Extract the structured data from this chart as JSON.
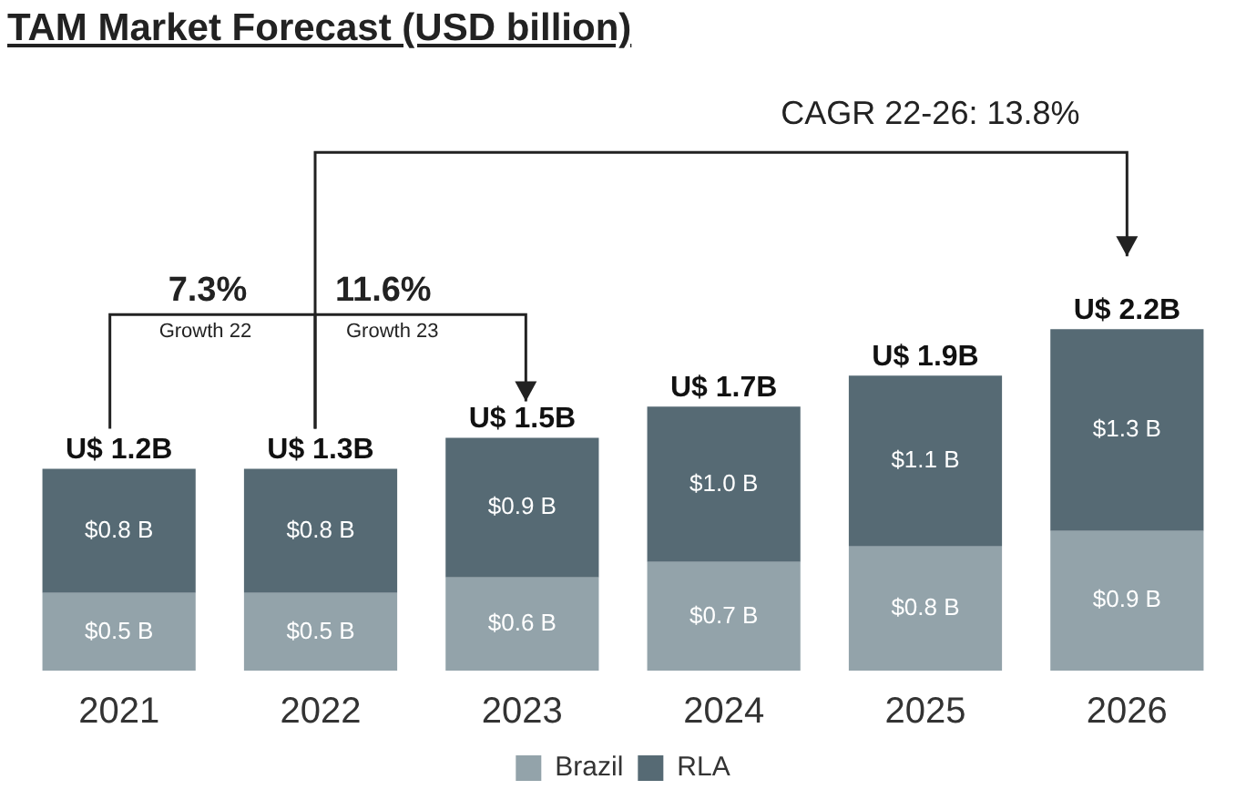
{
  "chart_data": {
    "type": "bar",
    "title": "TAM Market Forecast (USD billion)",
    "stacked": true,
    "legend": "bottom",
    "categories": [
      "2021",
      "2022",
      "2023",
      "2024",
      "2025",
      "2026"
    ],
    "series": [
      {
        "name": "Brazil",
        "color": "#93a3aa",
        "values": [
          0.5,
          0.5,
          0.6,
          0.7,
          0.8,
          0.9
        ],
        "value_labels": [
          "$0.5 B",
          "$0.5 B",
          "$0.6 B",
          "$0.7 B",
          "$0.8 B",
          "$0.9 B"
        ]
      },
      {
        "name": "RLA",
        "color": "#566a74",
        "values": [
          0.8,
          0.8,
          0.9,
          1.0,
          1.1,
          1.3
        ],
        "value_labels": [
          "$0.8 B",
          "$0.8 B",
          "$0.9 B",
          "$1.0 B",
          "$1.1 B",
          "$1.3 B"
        ]
      }
    ],
    "totals": [
      "U$ 1.2B",
      "U$ 1.3B",
      "U$ 1.5B",
      "U$ 1.7B",
      "U$ 1.9B",
      "U$ 2.2B"
    ],
    "annotations": [
      "CAGR 22-26: 13.8%",
      "7.3%",
      "Growth 22",
      "11.6%",
      "Growth 23"
    ]
  }
}
